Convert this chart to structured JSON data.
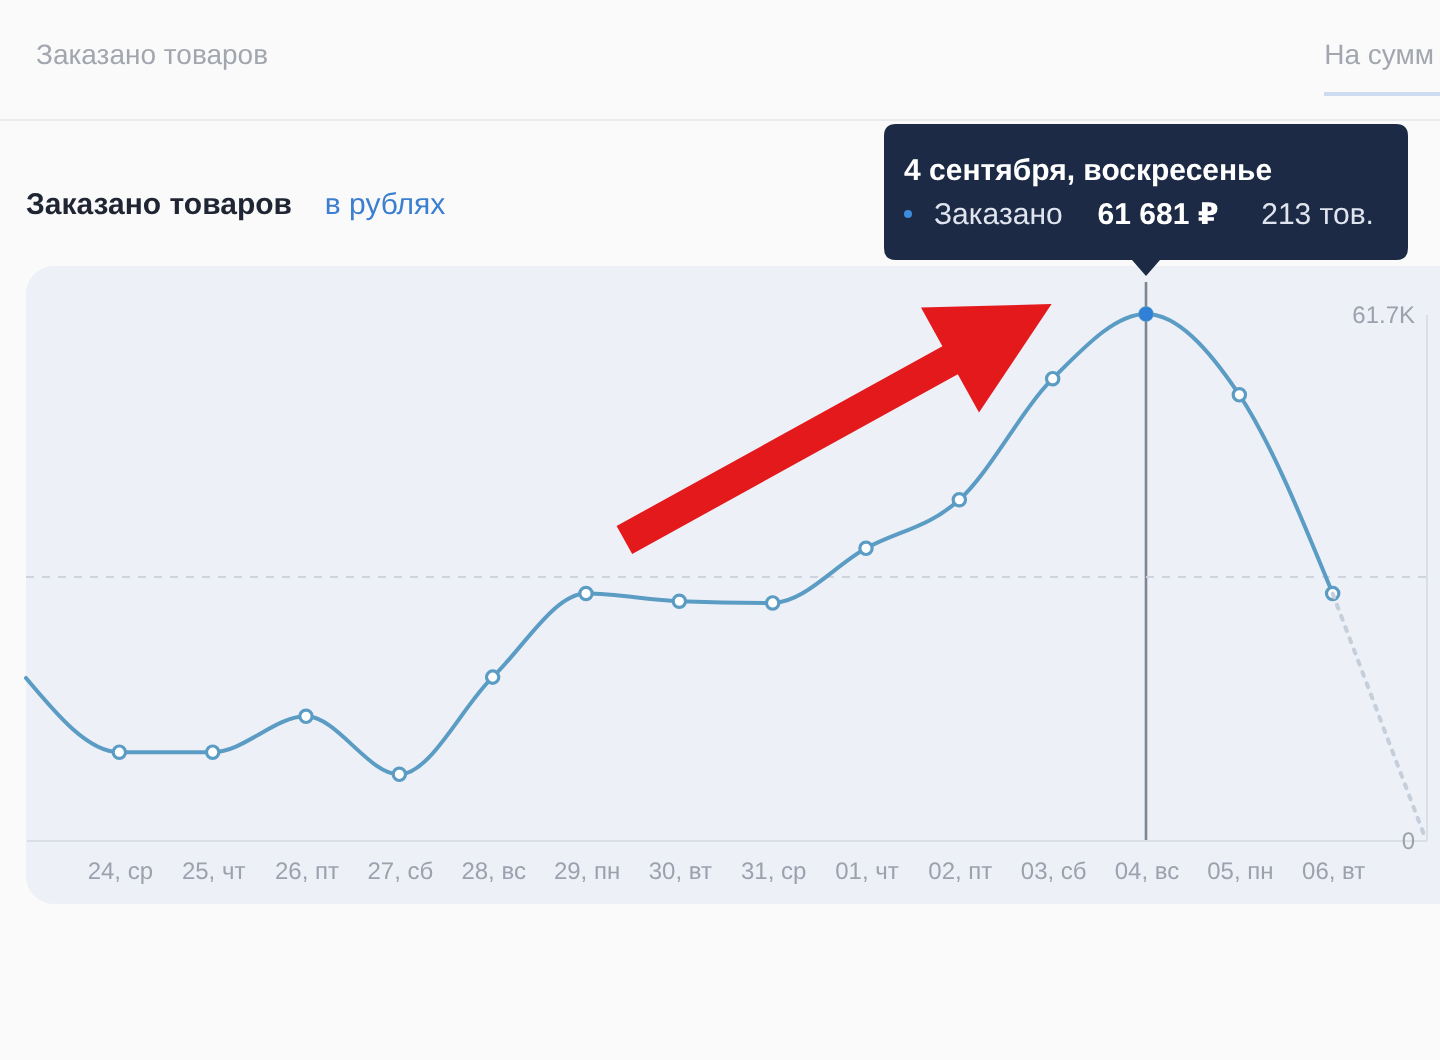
{
  "chart_data": {
    "type": "line",
    "title": "Заказано товаров",
    "annotations": [
      "Заказано товаров",
      "На сумм",
      "в рублях",
      "4 сентября, воскресенье",
      "Заказано",
      "61 681 ₽",
      "213 тов."
    ],
    "categories": [
      null,
      "24, ср",
      "25, чт",
      "26, пт",
      "27, сб",
      "28, вс",
      "29, пн",
      "30, вт",
      "31, ср",
      "01, чт",
      "02, пт",
      "03, сб",
      "04, вс",
      "05, пн",
      "06, вт",
      null
    ],
    "series": [
      {
        "color": "#5b9cc4",
        "marker": "circle",
        "values": [
          19000,
          10300,
          10300,
          14500,
          7700,
          19100,
          28900,
          28000,
          27800,
          34200,
          39900,
          54100,
          61681,
          52200,
          28900,
          null
        ]
      },
      {
        "color": "#c5cedb",
        "line_style": "dotted",
        "values": [
          null,
          null,
          null,
          null,
          null,
          null,
          null,
          null,
          null,
          null,
          null,
          null,
          null,
          null,
          28900,
          0
        ]
      }
    ],
    "ylim": [
      0,
      61681
    ],
    "yticks": [
      0,
      {
        "value": 61681,
        "label": "61.7K"
      }
    ],
    "ref_lines": [
      {
        "axis": "x",
        "value": "04, вс",
        "color": "#7d8694"
      },
      {
        "axis": "y",
        "value": 30840,
        "color": "#cdd4e0",
        "line_style": "dashed"
      }
    ]
  }
}
